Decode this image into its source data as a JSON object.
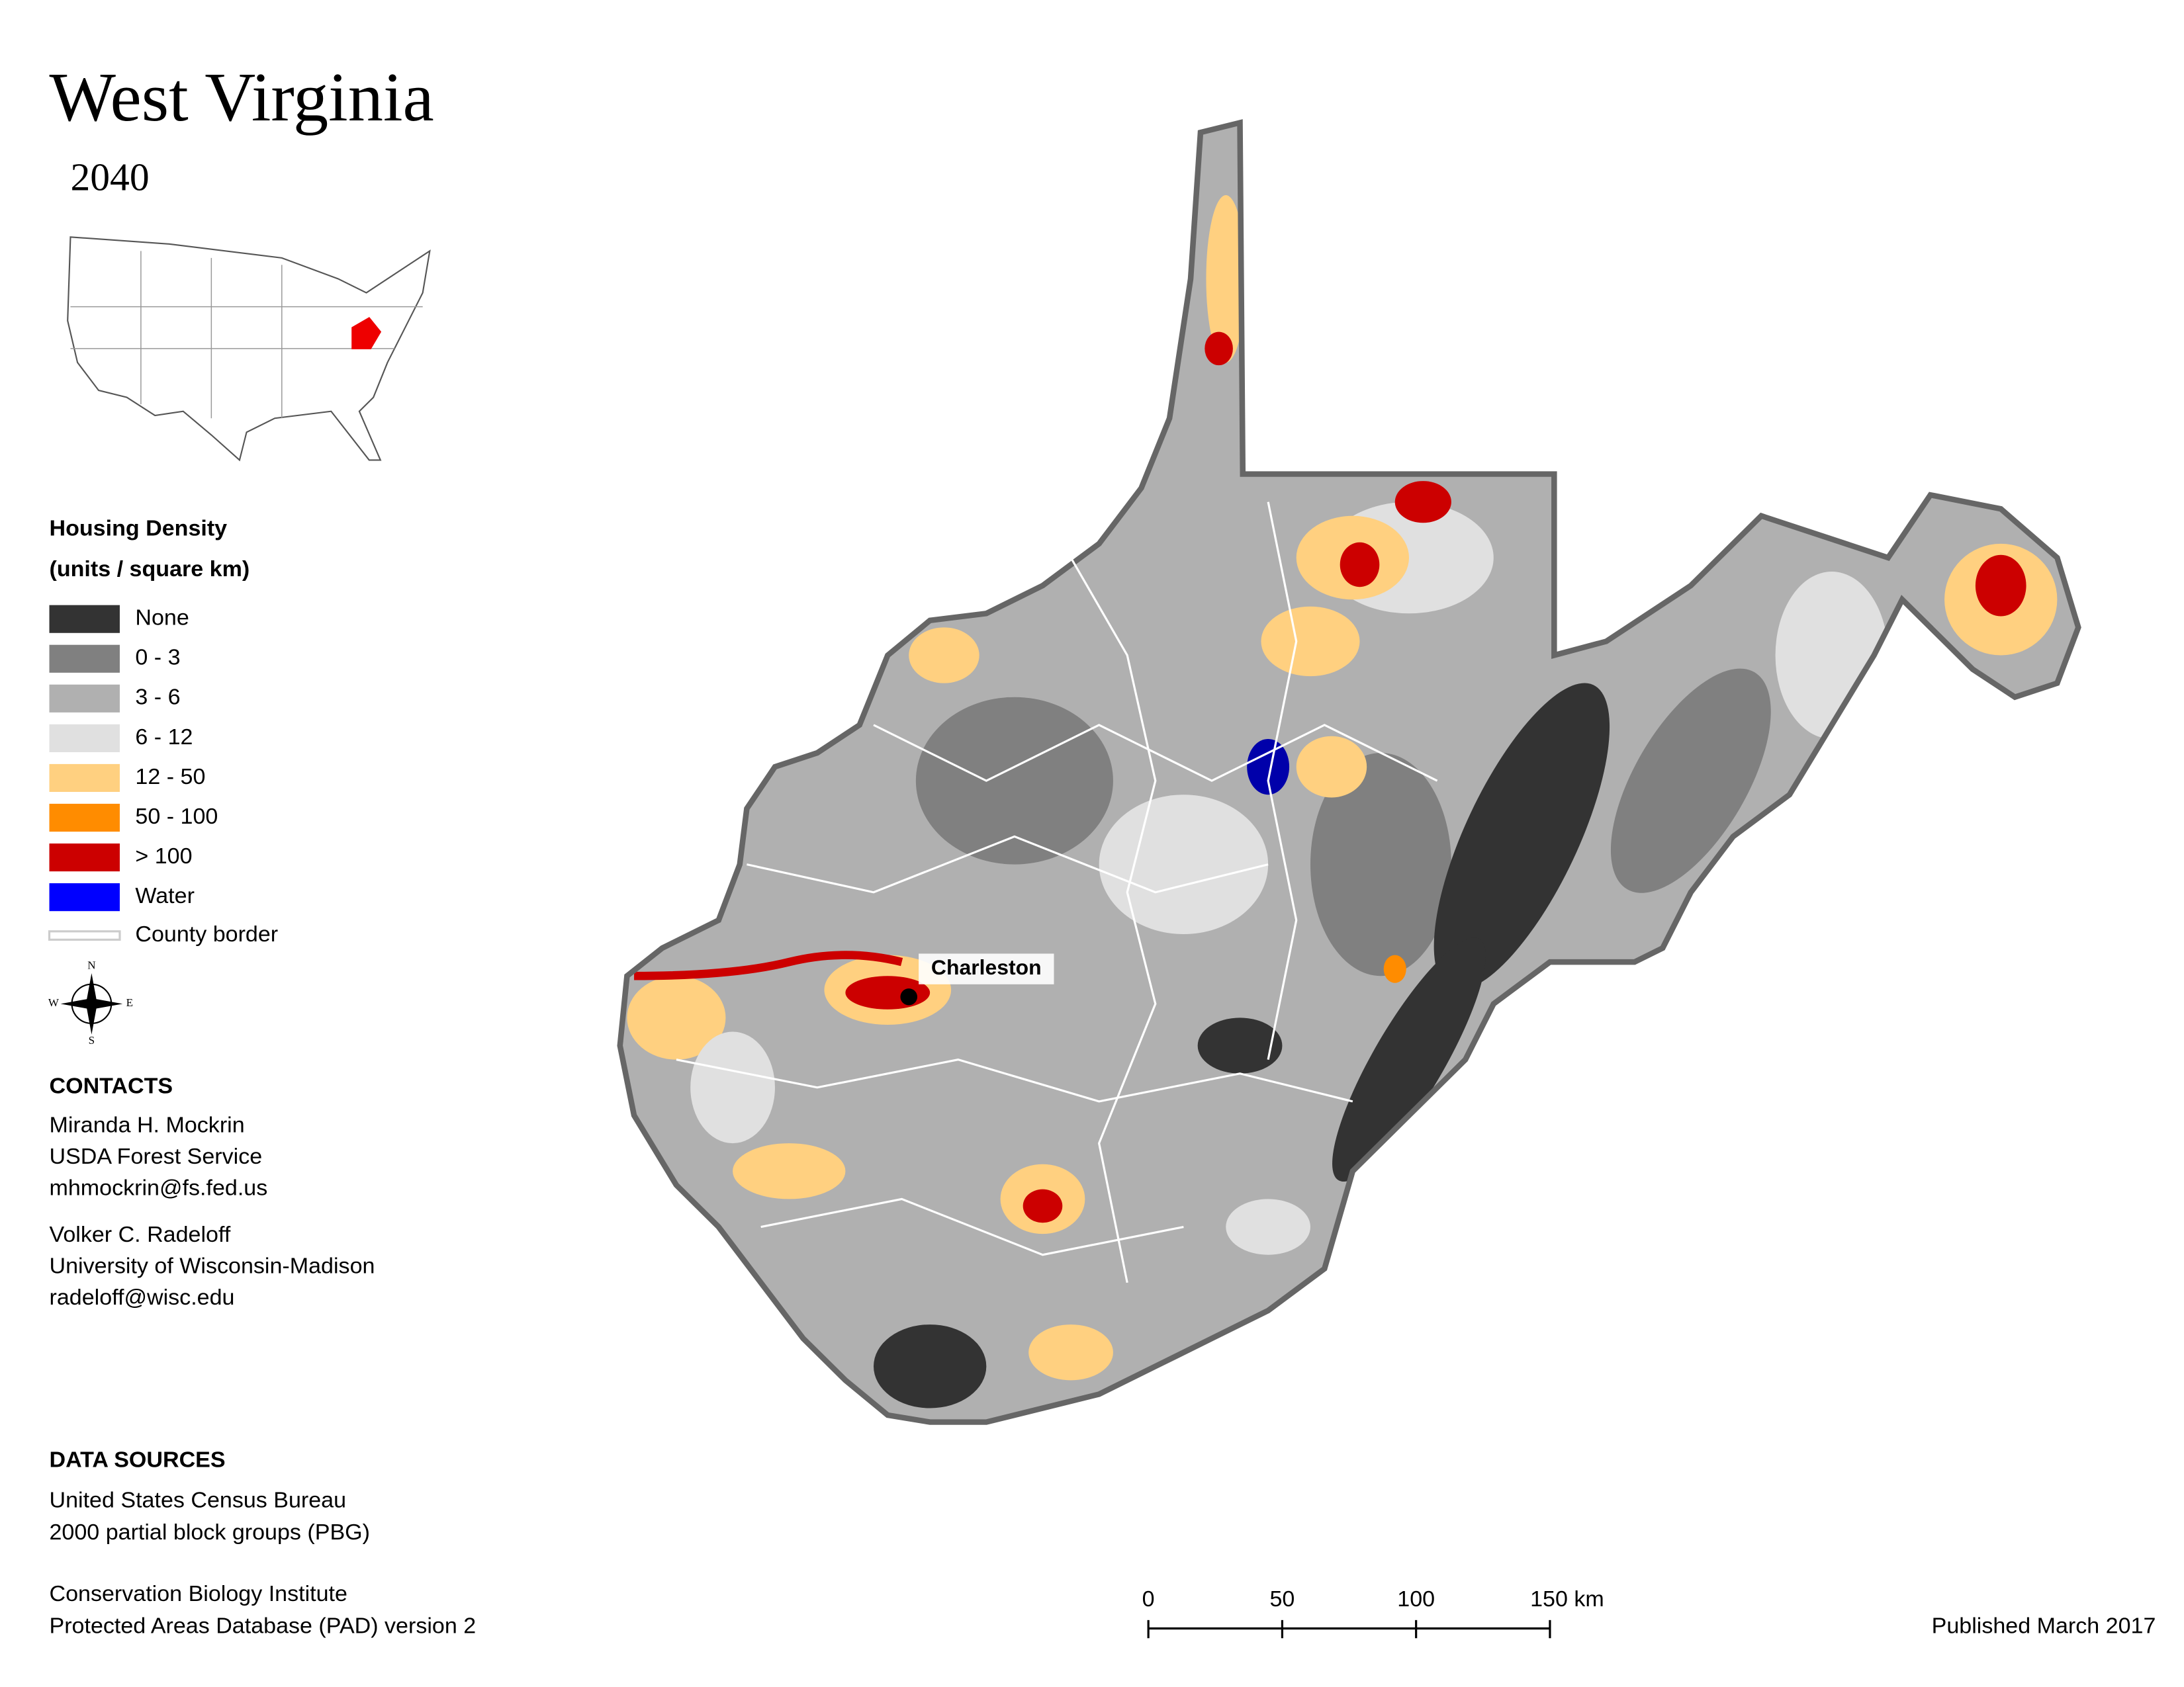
{
  "title": "West Virginia",
  "subtitle": "2040",
  "legend": {
    "title": "Housing Density",
    "subtitle": "(units / square km)",
    "items": [
      {
        "label": "None",
        "color": "#333333"
      },
      {
        "label": "0 - 3",
        "color": "#808080"
      },
      {
        "label": "3 - 6",
        "color": "#b0b0b0"
      },
      {
        "label": "6 - 12",
        "color": "#e0e0e0"
      },
      {
        "label": "12 - 50",
        "color": "#ffd080"
      },
      {
        "label": "50 - 100",
        "color": "#ff8c00"
      },
      {
        "label": "> 100",
        "color": "#cc0000"
      },
      {
        "label": "Water",
        "color": "#0000ff"
      }
    ],
    "border": {
      "label": "County border",
      "color": "#cccccc"
    }
  },
  "compass": {
    "n": "N",
    "e": "E",
    "s": "S",
    "w": "W"
  },
  "city": {
    "name": "Charleston"
  },
  "contacts": {
    "title": "CONTACTS",
    "people": [
      [
        "Miranda H. Mockrin",
        "USDA Forest Service",
        "mhmockrin@fs.fed.us"
      ],
      [
        "Volker C. Radeloff",
        "University of Wisconsin-Madison",
        "radeloff@wisc.edu"
      ]
    ]
  },
  "sources": {
    "title": "DATA SOURCES",
    "entries": [
      [
        "United States Census Bureau",
        "2000 partial block groups (PBG)"
      ],
      [
        "Conservation Biology Institute",
        "Protected Areas Database (PAD) version 2"
      ]
    ]
  },
  "scale": {
    "ticks": [
      0,
      50,
      100,
      {
        "value": 150,
        "label": "150 km"
      }
    ]
  },
  "published": "Published March 2017"
}
